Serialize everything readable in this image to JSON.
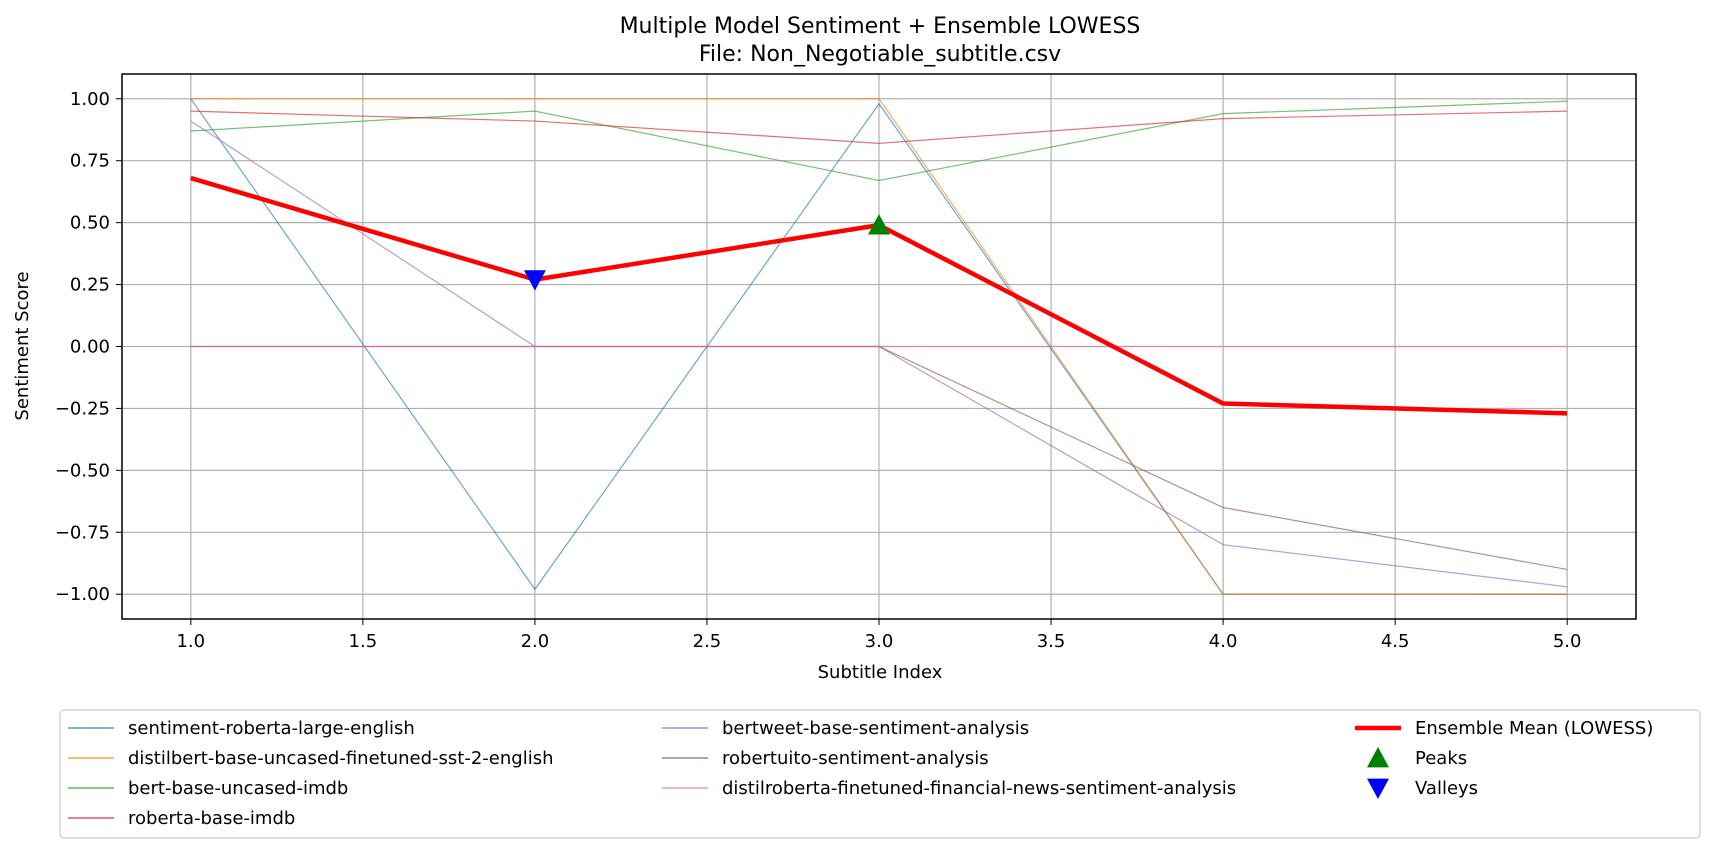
{
  "chart_data": {
    "type": "line",
    "title": "Multiple Model Sentiment + Ensemble LOWESS",
    "subtitle": "File: Non_Negotiable_subtitle.csv",
    "xlabel": "Subtitle Index",
    "ylabel": "Sentiment Score",
    "xlim": [
      0.8,
      5.2
    ],
    "ylim": [
      -1.1,
      1.1
    ],
    "xticks": [
      "1.0",
      "1.5",
      "2.0",
      "2.5",
      "3.0",
      "3.5",
      "4.0",
      "4.5",
      "5.0"
    ],
    "yticks": [
      "1.00",
      "0.75",
      "0.50",
      "0.25",
      "0.00",
      "−0.25",
      "−0.50",
      "−0.75",
      "−1.00"
    ],
    "grid": true,
    "legend_position": "below plot",
    "x": [
      1,
      2,
      3,
      4,
      5
    ],
    "series": [
      {
        "name": "sentiment-roberta-large-english",
        "color": "#1f77b4",
        "values": [
          1.0,
          -0.98,
          0.98,
          -1.0,
          -1.0
        ]
      },
      {
        "name": "distilbert-base-uncased-finetuned-sst-2-english",
        "color": "#ff7f0e",
        "values": [
          1.0,
          1.0,
          1.0,
          -1.0,
          -1.0
        ]
      },
      {
        "name": "bert-base-uncased-imdb",
        "color": "#2ca02c",
        "values": [
          0.87,
          0.95,
          0.67,
          0.94,
          0.99
        ]
      },
      {
        "name": "roberta-base-imdb",
        "color": "#d62728",
        "values": [
          0.95,
          0.91,
          0.82,
          0.92,
          0.95
        ]
      },
      {
        "name": "bertweet-base-sentiment-analysis",
        "color": "#9467bd",
        "values": [
          0.91,
          0.0,
          0.0,
          -0.8,
          -0.97
        ]
      },
      {
        "name": "robertuito-sentiment-analysis",
        "color": "#8c564b",
        "values": [
          0.0,
          0.0,
          0.0,
          -0.65,
          -0.9
        ]
      },
      {
        "name": "distilroberta-finetuned-financial-news-sentiment-analysis",
        "color": "#e377c2",
        "values": [
          0.0,
          0.0,
          0.0,
          0.0,
          0.0
        ]
      }
    ],
    "ensemble": {
      "name": "Ensemble Mean (LOWESS)",
      "color": "#ff0000",
      "values": [
        0.68,
        0.27,
        0.49,
        -0.23,
        -0.27
      ]
    },
    "peaks": {
      "name": "Peaks",
      "color": "#008000",
      "points": [
        {
          "x": 3,
          "y": 0.49
        }
      ]
    },
    "valleys": {
      "name": "Valleys",
      "color": "#0000ff",
      "points": [
        {
          "x": 2,
          "y": 0.27
        }
      ]
    }
  }
}
